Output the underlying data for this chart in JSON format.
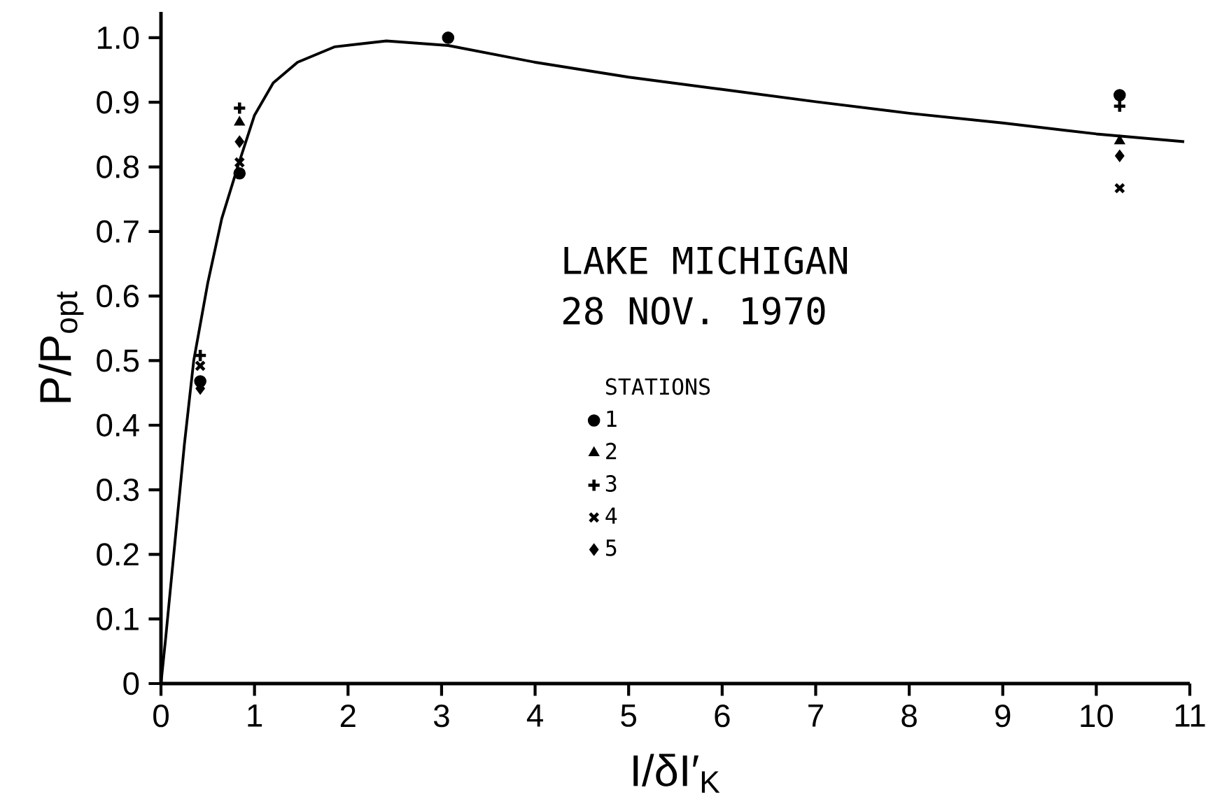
{
  "chart_data": {
    "type": "scatter",
    "annotations": [
      "LAKE MICHIGAN",
      "28 NOV. 1970"
    ],
    "xlabel": "I/δI′$_{K}$",
    "ylabel": "P/P$_{opt}$",
    "legend_title": "STATIONS",
    "legend": "center",
    "xlim": [
      0,
      11
    ],
    "ylim": [
      0,
      1.04
    ],
    "xticks": [
      0,
      1,
      2,
      3,
      4,
      5,
      6,
      7,
      8,
      9,
      10,
      11
    ],
    "yticks": [
      0,
      0.1,
      0.2,
      0.3,
      0.4,
      0.5,
      0.6,
      0.7,
      0.8,
      0.9,
      {
        "value": 1,
        "label": "1.0"
      }
    ],
    "grid": false,
    "x": [
      0.42,
      0.84,
      3.07,
      10.25
    ],
    "series": [
      {
        "name": "1",
        "color": "#000000",
        "marker": "circle",
        "values": [
          0.468,
          0.79,
          1.0,
          0.911
        ]
      },
      {
        "name": "2",
        "color": "#000000",
        "marker": "triangle",
        "values": [
          null,
          0.869,
          null,
          0.84
        ]
      },
      {
        "name": "3",
        "color": "#000000",
        "values": [
          0.508,
          0.891,
          null,
          0.894
        ]
      },
      {
        "name": "4",
        "color": "#000000",
        "marker": "cross",
        "values": [
          0.492,
          0.807,
          null,
          0.767
        ]
      },
      {
        "name": "5",
        "color": "#000000",
        "marker": "diamond",
        "values": [
          0.457,
          0.839,
          null,
          0.817
        ]
      },
      {
        "type": "line",
        "color": "#000000",
        "marker": "none",
        "line_style": "solid",
        "x": [
          0,
          0.05,
          0.15,
          0.25,
          0.35,
          0.5,
          0.65,
          0.82,
          1.0,
          1.2,
          1.46,
          1.86,
          2.41,
          3.07,
          4,
          5,
          6,
          7,
          8,
          9,
          10,
          10.94
        ],
        "values": [
          0,
          0.07,
          0.22,
          0.37,
          0.5,
          0.62,
          0.72,
          0.8,
          0.88,
          0.93,
          0.962,
          0.986,
          0.995,
          0.988,
          0.962,
          0.939,
          0.92,
          0.901,
          0.883,
          0.868,
          0.851,
          0.839
        ]
      }
    ]
  }
}
